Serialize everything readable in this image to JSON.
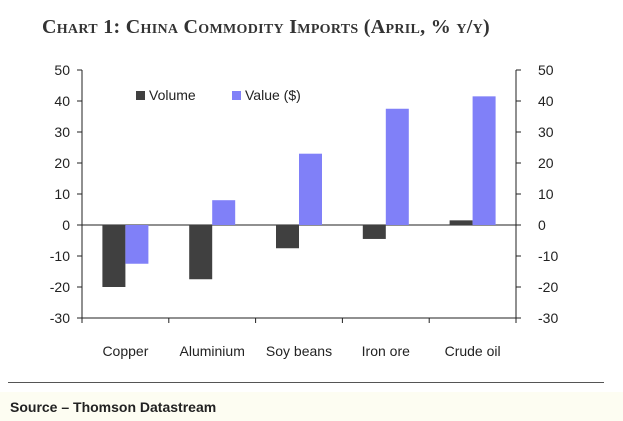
{
  "chart_data": {
    "type": "bar",
    "title": "Chart 1: China Commodity Imports (April, % y/y)",
    "categories": [
      "Copper",
      "Aluminium",
      "Soy beans",
      "Iron ore",
      "Crude oil"
    ],
    "series": [
      {
        "name": "Volume",
        "color": "#404040",
        "values": [
          -20,
          -17.5,
          -7.5,
          -4.5,
          1.5
        ]
      },
      {
        "name": "Value ($)",
        "color": "#8080f8",
        "values": [
          -12.5,
          8,
          23,
          37.5,
          41.5
        ]
      }
    ],
    "ylim": [
      -30,
      50
    ],
    "yticks": [
      "50",
      "40",
      "30",
      "20",
      "10",
      "0",
      "-10",
      "-20",
      "-30"
    ],
    "xlabel": "",
    "ylabel": "",
    "legend_position": "top-left"
  },
  "footer": {
    "source": "Source – Thomson Datastream"
  }
}
